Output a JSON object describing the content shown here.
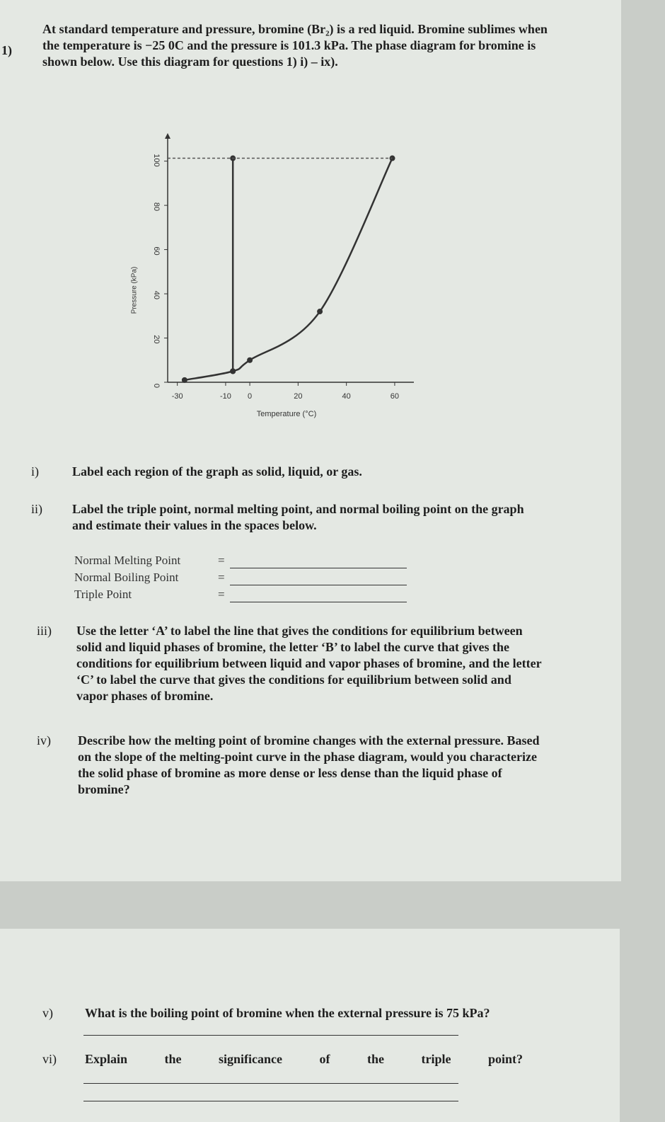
{
  "question": {
    "number": "1)",
    "text": "At standard temperature and pressure, bromine (Br₂) is a red liquid. Bromine sublimes when the temperature is −25 0C and the pressure is 101.3 kPa. The phase diagram for bromine is shown below. Use this diagram for questions 1) i) – ix)."
  },
  "chart_data": {
    "type": "line",
    "xlabel": "Temperature (°C)",
    "ylabel": "Pressure (kPa)",
    "xlim": [
      -34,
      65
    ],
    "ylim": [
      0,
      105
    ],
    "xticks": [
      -30,
      -10,
      0,
      20,
      40,
      60
    ],
    "yticks": [
      0,
      20,
      40,
      60,
      80,
      100
    ],
    "series": [
      {
        "color": "#333333",
        "x": [
          -27,
          -7,
          0,
          29,
          59
        ],
        "values": [
          1,
          5,
          10,
          32,
          101.3
        ]
      },
      {
        "color": "#333333",
        "x": [
          -7,
          -7
        ],
        "values": [
          5,
          101.3
        ]
      },
      {
        "color": "#555555",
        "dashed": true,
        "x": [
          -34,
          59
        ],
        "values": [
          101.3,
          101.3
        ]
      }
    ]
  },
  "parts": [
    {
      "label": "i)",
      "text": "Label each region of the graph as solid, liquid, or gas."
    },
    {
      "label": "ii)",
      "text": "Label the triple point, normal melting point, and normal boiling point on the graph and estimate their values in the spaces below."
    },
    {
      "label": "iii)",
      "text": "Use the letter ‘A’ to label the line that gives the conditions for equilibrium between solid and liquid phases of bromine, the letter ‘B’ to label the curve that gives the conditions for equilibrium between liquid and vapor phases of bromine, and the letter ‘C’ to label the curve that gives the conditions for equilibrium between solid and vapor phases of bromine."
    },
    {
      "label": "iv)",
      "text": "Describe how the melting point of bromine changes with the external pressure. Based on the slope of the melting-point curve in the phase diagram, would you characterize the solid phase of bromine as more dense or less dense than the liquid phase of bromine?"
    },
    {
      "label": "v)",
      "text": "What is the boiling point of bromine when the external pressure is 75 kPa?"
    },
    {
      "label": "vi)",
      "text": "Explain the significance of the triple point?"
    }
  ],
  "blanks": [
    {
      "label": "Normal Melting Point",
      "sign": "="
    },
    {
      "label": "Normal Boiling Point",
      "sign": "="
    },
    {
      "label": "Triple Point",
      "sign": "="
    }
  ]
}
